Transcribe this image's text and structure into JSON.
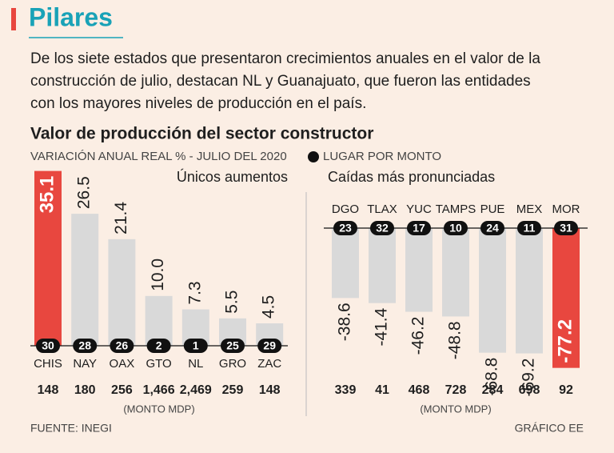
{
  "header": {
    "title": "Pilares",
    "description_lines": [
      "De los siete estados que presentaron crecimientos anuales en el valor de la",
      "construcción de julio, destacan NL y Guanajuato, que fueron las entidades",
      "con los mayores niveles de producción en el país."
    ]
  },
  "chart_title": "Valor de producción del sector constructor",
  "subtitle": "VARIACIÓN ANUAL REAL % - JULIO DEL 2020",
  "legend": "LUGAR POR MONTO",
  "source": "FUENTE: INEGI",
  "credit": "GRÁFICO EE",
  "chart_data": [
    {
      "type": "bar",
      "title": "Únicos aumentos",
      "categories": [
        "CHIS",
        "NAY",
        "OAX",
        "GTO",
        "NL",
        "GRO",
        "ZAC"
      ],
      "values": [
        35.1,
        26.5,
        21.4,
        10.0,
        7.3,
        5.5,
        4.5
      ],
      "value_labels": [
        "35.1",
        "26.5",
        "21.4",
        "10.0",
        "7.3",
        "5.5",
        "4.5"
      ],
      "ranks": [
        30,
        28,
        26,
        2,
        1,
        25,
        29
      ],
      "monto": {
        "title": "(MONTO MDP)",
        "values": [
          148,
          180,
          256,
          1466,
          2469,
          259,
          148
        ],
        "value_labels": [
          "148",
          "180",
          "256",
          "1,466",
          "2,469",
          "259",
          "148"
        ]
      },
      "color": "#d9d9d9",
      "highlight_color": "#e8473f",
      "highlight": 0,
      "ylim": [
        0,
        36
      ]
    },
    {
      "type": "bar",
      "title": "Caídas más pronunciadas",
      "categories": [
        "DGO",
        "TLAX",
        "YUC",
        "TAMPS",
        "PUE",
        "MEX",
        "MOR"
      ],
      "values": [
        -38.6,
        -41.4,
        -46.2,
        -48.8,
        -68.8,
        -69.2,
        -77.2
      ],
      "value_labels": [
        "-38.6",
        "-41.4",
        "-46.2",
        "-48.8",
        "-68.8",
        "-69.2",
        "-77.2"
      ],
      "ranks": [
        23,
        32,
        17,
        10,
        24,
        11,
        31
      ],
      "monto": {
        "title": "(MONTO MDP)",
        "values": [
          339,
          41,
          468,
          728,
          284,
          698,
          92
        ],
        "value_labels": [
          "339",
          "41",
          "468",
          "728",
          "284",
          "698",
          "92"
        ]
      },
      "color": "#d9d9d9",
      "highlight_color": "#e8473f",
      "highlight": 6,
      "ylim": [
        -80,
        0
      ]
    }
  ]
}
